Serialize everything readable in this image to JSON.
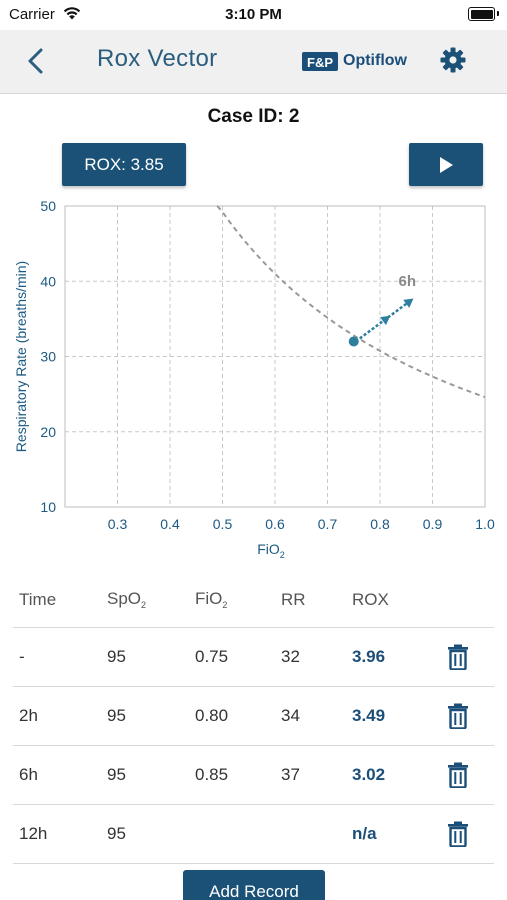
{
  "status_bar": {
    "carrier": "Carrier",
    "time": "3:10 PM"
  },
  "nav": {
    "title": "Rox Vector",
    "brand_badge": "F&P",
    "brand_name": "Optiflow"
  },
  "case_id": "Case ID: 2",
  "rox_button": "ROX: 3.85",
  "colors": {
    "primary": "#1b5177",
    "title": "#2b5d7e",
    "marker": "#2e7f9e"
  },
  "chart_data": {
    "type": "scatter",
    "xlabel": "FiO",
    "xlabel_sub": "2",
    "ylabel": "Respiratory Rate (breaths/min)",
    "xlim": [
      0.2,
      1.0
    ],
    "ylim": [
      10,
      50
    ],
    "x_ticks": [
      "0.3",
      "0.4",
      "0.5",
      "0.6",
      "0.7",
      "0.8",
      "0.9",
      "1.0"
    ],
    "y_ticks": [
      "10",
      "20",
      "30",
      "40",
      "50"
    ],
    "grid": true,
    "point": {
      "x": 0.75,
      "y": 32
    },
    "vector": {
      "from": [
        0.75,
        32
      ],
      "to": [
        0.85,
        37
      ],
      "label": "6h"
    },
    "curve": {
      "description_k": 24.6,
      "x_from": 0.49,
      "x_to": 1.0
    }
  },
  "table": {
    "headers": {
      "time": "Time",
      "spo2": "SpO",
      "spo2_sub": "2",
      "fio2": "FiO",
      "fio2_sub": "2",
      "rr": "RR",
      "rox": "ROX"
    },
    "rows": [
      {
        "time": "-",
        "spo2": "95",
        "fio2": "0.75",
        "rr": "32",
        "rox": "3.96"
      },
      {
        "time": "2h",
        "spo2": "95",
        "fio2": "0.80",
        "rr": "34",
        "rox": "3.49"
      },
      {
        "time": "6h",
        "spo2": "95",
        "fio2": "0.85",
        "rr": "37",
        "rox": "3.02"
      },
      {
        "time": "12h",
        "spo2": "95",
        "fio2": "",
        "rr": "",
        "rox": "n/a"
      }
    ]
  },
  "add_record": "Add Record"
}
